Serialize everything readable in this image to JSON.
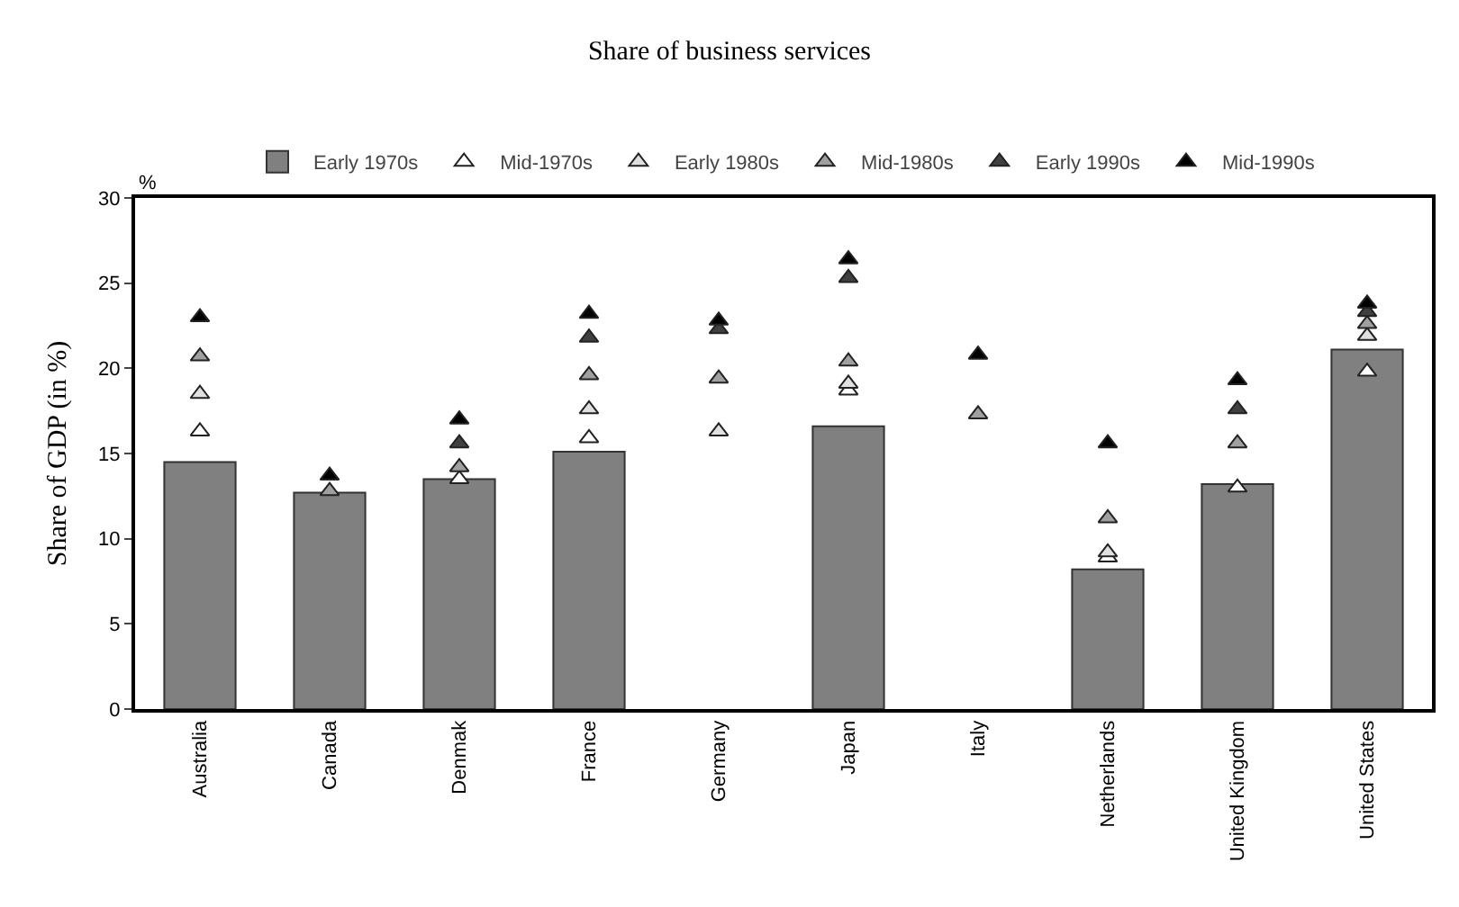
{
  "chart_data": {
    "type": "bar",
    "title": "Share of business services",
    "ylabel": "Share of GDP (in %)",
    "annotations": [
      "%"
    ],
    "categories": [
      "Australia",
      "Canada",
      "Denmak",
      "France",
      "Germany",
      "Japan",
      "Italy",
      "Netherlands",
      "United Kingdom",
      "United States"
    ],
    "series": [
      {
        "name": "Early 1970s",
        "color": "#808080",
        "values": [
          14.5,
          12.7,
          13.5,
          15.1,
          null,
          16.6,
          null,
          8.2,
          13.2,
          21.1
        ]
      },
      {
        "name": "Mid-1970s",
        "type": "scatter",
        "marker": "triangle",
        "color": "#ffffff",
        "values": [
          16.3,
          null,
          13.5,
          15.9,
          null,
          18.7,
          null,
          8.9,
          13.0,
          19.8
        ]
      },
      {
        "name": "Early 1980s",
        "type": "scatter",
        "marker": "triangle",
        "color": "#e0e0e0",
        "values": [
          18.5,
          null,
          null,
          17.6,
          16.3,
          19.1,
          null,
          9.2,
          null,
          21.9
        ]
      },
      {
        "name": "Mid-1980s",
        "type": "scatter",
        "marker": "triangle",
        "color": "#a0a0a0",
        "values": [
          20.7,
          12.8,
          14.2,
          19.6,
          19.4,
          20.4,
          17.3,
          11.2,
          15.6,
          22.6
        ]
      },
      {
        "name": "Early 1990s",
        "type": "scatter",
        "marker": "triangle",
        "color": "#404040",
        "values": [
          null,
          null,
          15.6,
          21.8,
          22.3,
          25.3,
          null,
          null,
          17.6,
          23.3
        ]
      },
      {
        "name": "Mid-1990s",
        "type": "scatter",
        "marker": "triangle",
        "color": "#000000",
        "values": [
          23.0,
          13.7,
          17.0,
          23.2,
          22.8,
          26.4,
          20.8,
          15.6,
          19.3,
          23.8
        ]
      }
    ],
    "ylim": [
      0,
      30
    ],
    "yticks": [
      0,
      5,
      10,
      15,
      20,
      25,
      30
    ],
    "grid": false,
    "legend": "top"
  }
}
